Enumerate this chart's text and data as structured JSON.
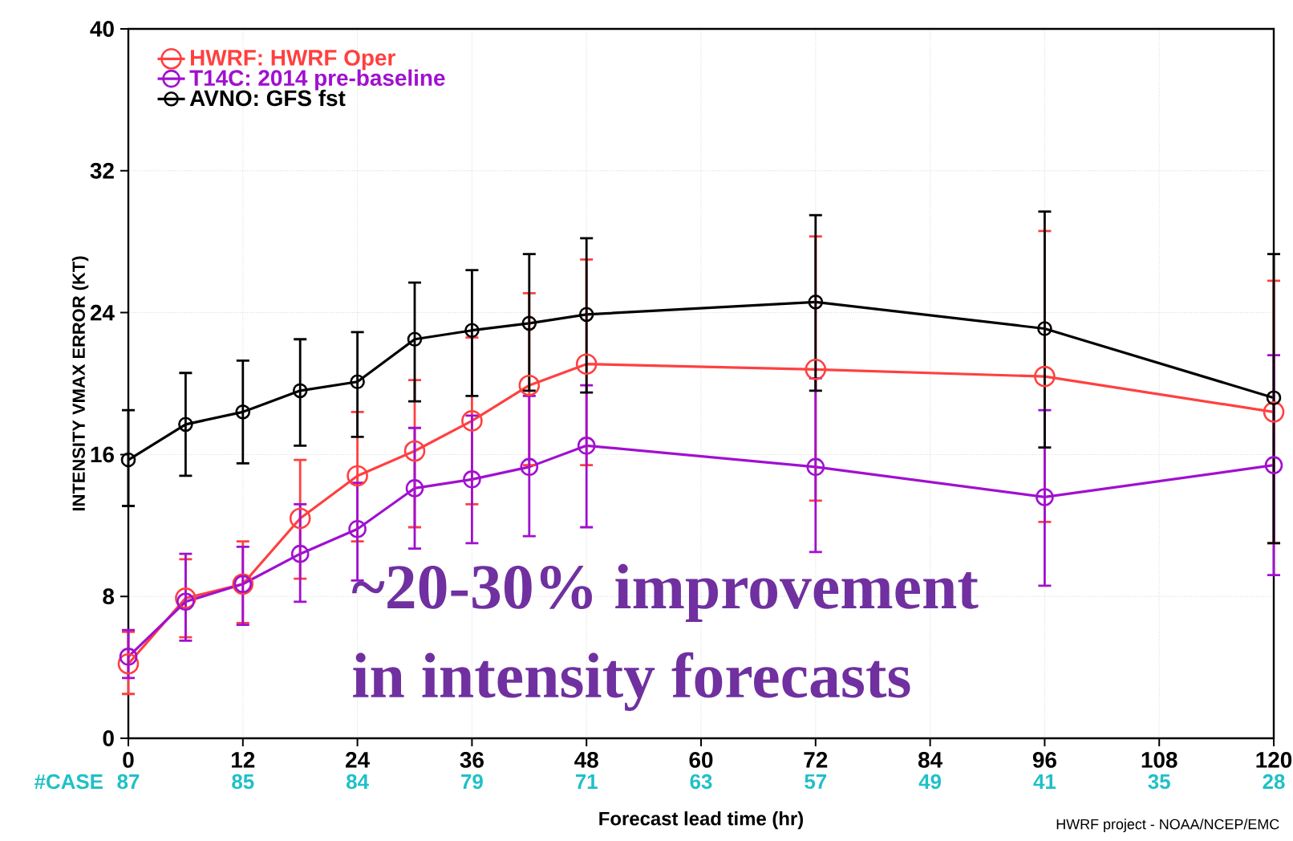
{
  "chart_data": {
    "type": "line",
    "xlabel": "Forecast lead time (hr)",
    "ylabel": "INTENSITY VMAX ERROR (KT)",
    "x": [
      0,
      6,
      12,
      18,
      24,
      30,
      36,
      42,
      48,
      72,
      96,
      120
    ],
    "xlim": [
      0,
      120
    ],
    "xticks": [
      0,
      12,
      24,
      36,
      48,
      60,
      72,
      84,
      96,
      108,
      120
    ],
    "ylim": [
      0,
      40
    ],
    "yticks": [
      0,
      8,
      16,
      24,
      32,
      40
    ],
    "grid": true,
    "legend": "top left",
    "marker": "circle",
    "line_style": "solid",
    "series": [
      {
        "name": "HWRF: HWRF Oper",
        "color": "#ff4040",
        "values": [
          4.2,
          7.9,
          8.7,
          12.4,
          14.8,
          16.2,
          17.9,
          19.9,
          21.1,
          20.8,
          20.4,
          18.4
        ],
        "errors": [
          [
            2.5,
            6.0
          ],
          [
            5.7,
            10.1
          ],
          [
            6.5,
            11.1
          ],
          [
            9.0,
            15.7
          ],
          [
            11.1,
            18.4
          ],
          [
            11.9,
            20.2
          ],
          [
            13.2,
            22.6
          ],
          [
            15.4,
            25.1
          ],
          [
            15.4,
            27.0
          ],
          [
            13.4,
            28.3
          ],
          [
            12.2,
            28.6
          ],
          [
            11.0,
            25.8
          ]
        ]
      },
      {
        "name": "T14C: 2014 pre-baseline",
        "color": "#a010d0",
        "values": [
          4.6,
          7.7,
          8.7,
          10.4,
          11.8,
          14.1,
          14.6,
          15.3,
          16.5,
          15.3,
          13.6,
          15.4
        ],
        "errors": [
          [
            3.4,
            6.1
          ],
          [
            5.5,
            10.4
          ],
          [
            6.4,
            10.8
          ],
          [
            7.7,
            13.2
          ],
          [
            8.9,
            14.4
          ],
          [
            10.7,
            17.5
          ],
          [
            11.0,
            18.2
          ],
          [
            11.4,
            19.3
          ],
          [
            11.9,
            19.9
          ],
          [
            10.5,
            20.3
          ],
          [
            8.6,
            18.5
          ],
          [
            9.2,
            21.6
          ]
        ]
      },
      {
        "name": "AVNO: GFS fst",
        "color": "#000000",
        "values": [
          15.7,
          17.7,
          18.4,
          19.6,
          20.1,
          22.5,
          23.0,
          23.4,
          23.9,
          24.6,
          23.1,
          19.2
        ],
        "errors": [
          [
            13.1,
            18.5
          ],
          [
            14.8,
            20.6
          ],
          [
            15.5,
            21.3
          ],
          [
            16.5,
            22.5
          ],
          [
            17.0,
            22.9
          ],
          [
            19.0,
            25.7
          ],
          [
            19.3,
            26.4
          ],
          [
            19.6,
            27.3
          ],
          [
            19.5,
            28.2
          ],
          [
            19.6,
            29.5
          ],
          [
            16.4,
            29.7
          ],
          [
            11.0,
            27.3
          ]
        ]
      }
    ],
    "annotations": [
      "#CASE",
      "87",
      "85",
      "84",
      "79",
      "71",
      "63",
      "57",
      "49",
      "41",
      "35",
      "28",
      "~20-30% improvement",
      "in intensity forecasts",
      "HWRF project - NOAA/NCEP/EMC"
    ]
  }
}
